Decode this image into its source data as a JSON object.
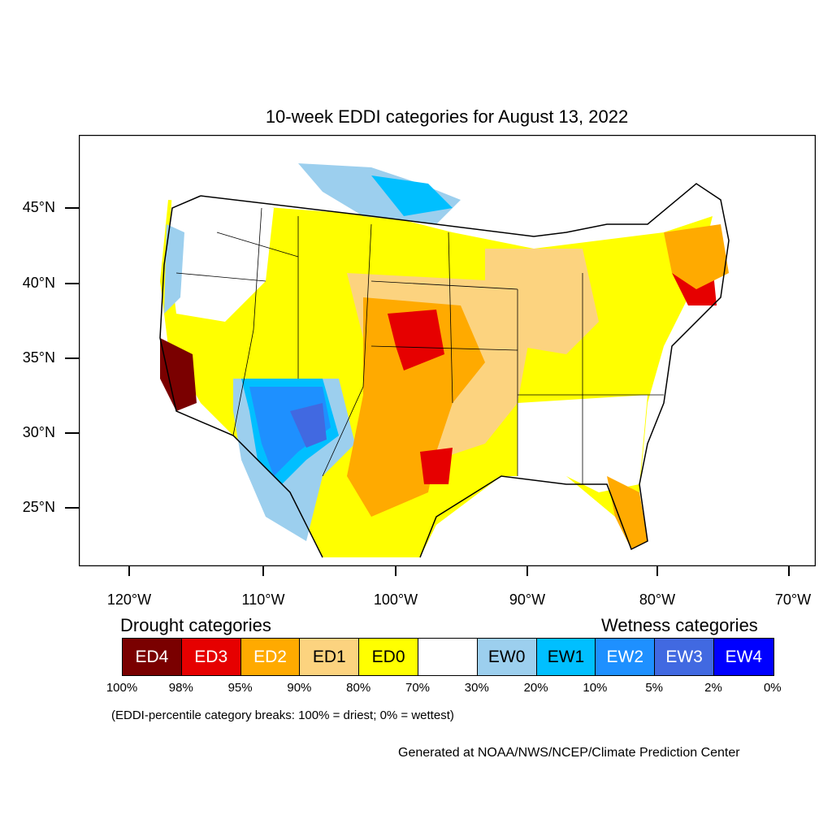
{
  "title": "10-week EDDI categories for August 13, 2022",
  "y_axis": {
    "ticks": [
      "45°N",
      "40°N",
      "35°N",
      "30°N",
      "25°N"
    ]
  },
  "x_axis": {
    "ticks": [
      "120°W",
      "110°W",
      "100°W",
      "90°W",
      "80°W",
      "70°W"
    ]
  },
  "legend": {
    "drought_heading": "Drought categories",
    "wetness_heading": "Wetness categories",
    "categories": [
      {
        "label": "ED4",
        "color": "#7a0000",
        "text_color": "#ffffff"
      },
      {
        "label": "ED3",
        "color": "#e60000",
        "text_color": "#ffffff"
      },
      {
        "label": "ED2",
        "color": "#ffaa00",
        "text_color": "#ffffff"
      },
      {
        "label": "ED1",
        "color": "#fcd37f",
        "text_color": "#000000"
      },
      {
        "label": "ED0",
        "color": "#ffff00",
        "text_color": "#000000"
      },
      {
        "label": "",
        "color": "#ffffff",
        "text_color": "#000000"
      },
      {
        "label": "EW0",
        "color": "#9ccfee",
        "text_color": "#000000"
      },
      {
        "label": "EW1",
        "color": "#00bfff",
        "text_color": "#000000"
      },
      {
        "label": "EW2",
        "color": "#1e90ff",
        "text_color": "#ffffff"
      },
      {
        "label": "EW3",
        "color": "#4169e1",
        "text_color": "#ffffff"
      },
      {
        "label": "EW4",
        "color": "#0000ff",
        "text_color": "#ffffff"
      }
    ],
    "percentiles": [
      "100%",
      "98%",
      "95%",
      "90%",
      "80%",
      "70%",
      "30%",
      "20%",
      "10%",
      "5%",
      "2%",
      "0%"
    ]
  },
  "note": "(EDDI-percentile category breaks: 100% = driest; 0% = wettest)",
  "credit": "Generated at NOAA/NWS/NCEP/Climate Prediction Center"
}
